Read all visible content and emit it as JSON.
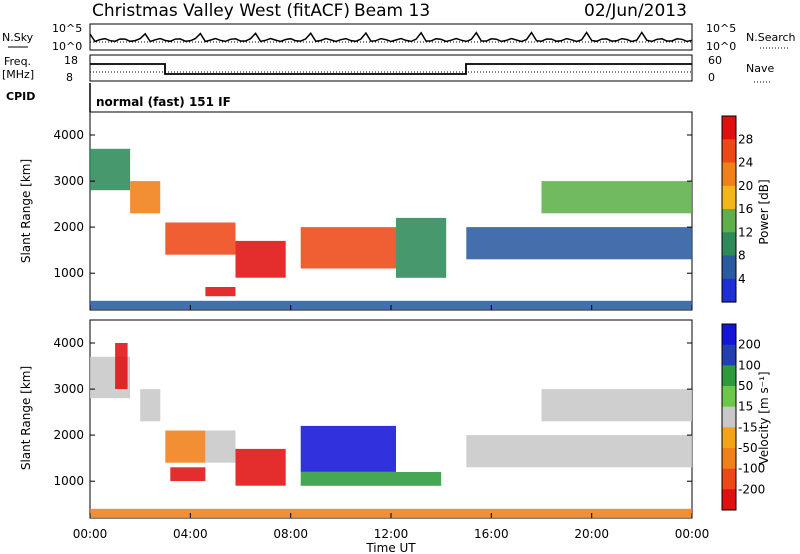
{
  "header": {
    "title": "Christmas Valley West (fitACF)",
    "beam": "Beam 13",
    "date": "02/Jun/2013"
  },
  "top_panels": {
    "nsky_label": "N.Sky",
    "nsky_ticks": [
      "10^5",
      "10^0"
    ],
    "nsky_right_ticks": [
      "10^5",
      "10^0"
    ],
    "nsearch_label": "N.Search",
    "freq_label_line1": "Freq.",
    "freq_label_line2": "[MHz]",
    "freq_ticks": [
      "18",
      "8"
    ],
    "nave_ticks": [
      "60",
      "0"
    ],
    "nave_label": "Nave",
    "cpid_label": "CPID",
    "cpid_text": "normal (fast) 151 IF"
  },
  "colors": {
    "power_scale": [
      "#1f2fd6",
      "#2a5aa0",
      "#2f8a5a",
      "#5fb04a",
      "#f2b61a",
      "#f08018",
      "#ee4818",
      "#e01010"
    ],
    "velocity_scale": [
      "#e01010",
      "#ee4818",
      "#f08018",
      "#f2a418",
      "#c8c8c8",
      "#6cc84a",
      "#2e9a3c",
      "#2240b0",
      "#1414d8"
    ]
  },
  "chart_data": [
    {
      "type": "heatmap",
      "name": "power",
      "ylabel": "Slant Range [km]",
      "y_ticks": [
        "4000",
        "3000",
        "2000",
        "1000"
      ],
      "ylim": [
        200,
        4500
      ],
      "xlim": [
        0,
        24
      ],
      "colorbar_label": "Power [dB]",
      "colorbar_ticks": [
        "28",
        "24",
        "20",
        "16",
        "12",
        "8",
        "4"
      ],
      "regions": [
        {
          "t0": 0.0,
          "t1": 1.6,
          "r0": 2800,
          "r1": 3700,
          "value": 10
        },
        {
          "t0": 1.6,
          "t1": 2.8,
          "r0": 2300,
          "r1": 3000,
          "value": 20
        },
        {
          "t0": 3.0,
          "t1": 5.8,
          "r0": 1400,
          "r1": 2100,
          "value": 26
        },
        {
          "t0": 5.8,
          "t1": 7.8,
          "r0": 900,
          "r1": 1700,
          "value": 28
        },
        {
          "t0": 4.6,
          "t1": 5.8,
          "r0": 500,
          "r1": 700,
          "value": 28
        },
        {
          "t0": 8.4,
          "t1": 12.2,
          "r0": 1100,
          "r1": 2000,
          "value": 25
        },
        {
          "t0": 12.2,
          "t1": 14.2,
          "r0": 900,
          "r1": 2200,
          "value": 8
        },
        {
          "t0": 15.0,
          "t1": 24.0,
          "r0": 1300,
          "r1": 2000,
          "value": 7
        },
        {
          "t0": 18.0,
          "t1": 24.0,
          "r0": 2300,
          "r1": 3000,
          "value": 14
        },
        {
          "t0": 0.0,
          "t1": 24.0,
          "r0": 200,
          "r1": 400,
          "value": 6
        }
      ]
    },
    {
      "type": "heatmap",
      "name": "velocity",
      "ylabel": "Slant Range [km]",
      "y_ticks": [
        "4000",
        "3000",
        "2000",
        "1000"
      ],
      "ylim": [
        200,
        4500
      ],
      "xlim": [
        0,
        24
      ],
      "x_ticks": [
        "00:00",
        "04:00",
        "08:00",
        "12:00",
        "16:00",
        "20:00",
        "00:00"
      ],
      "xlabel": "Time UT",
      "colorbar_label": "Velocity [m s⁻¹]",
      "colorbar_ticks": [
        "200",
        "100",
        "50",
        "15",
        "-15",
        "-50",
        "-100",
        "-200"
      ],
      "regions": [
        {
          "t0": 0.0,
          "t1": 1.6,
          "r0": 2800,
          "r1": 3700,
          "value": -10
        },
        {
          "t0": 1.0,
          "t1": 1.5,
          "r0": 3000,
          "r1": 4000,
          "value": -200
        },
        {
          "t0": 2.0,
          "t1": 2.8,
          "r0": 2300,
          "r1": 3000,
          "value": 0
        },
        {
          "t0": 3.0,
          "t1": 4.6,
          "r0": 1400,
          "r1": 2100,
          "value": -80
        },
        {
          "t0": 4.6,
          "t1": 5.8,
          "r0": 1400,
          "r1": 2100,
          "value": 0
        },
        {
          "t0": 5.8,
          "t1": 7.8,
          "r0": 900,
          "r1": 1700,
          "value": -220
        },
        {
          "t0": 3.2,
          "t1": 4.6,
          "r0": 1000,
          "r1": 1300,
          "value": -220
        },
        {
          "t0": 8.4,
          "t1": 12.2,
          "r0": 1200,
          "r1": 2200,
          "value": 220
        },
        {
          "t0": 8.4,
          "t1": 14.0,
          "r0": 900,
          "r1": 1200,
          "value": 70
        },
        {
          "t0": 15.0,
          "t1": 24.0,
          "r0": 1300,
          "r1": 2000,
          "value": -10
        },
        {
          "t0": 18.0,
          "t1": 24.0,
          "r0": 2300,
          "r1": 3000,
          "value": 0
        },
        {
          "t0": 0.0,
          "t1": 24.0,
          "r0": 200,
          "r1": 400,
          "value": -60
        }
      ]
    }
  ]
}
